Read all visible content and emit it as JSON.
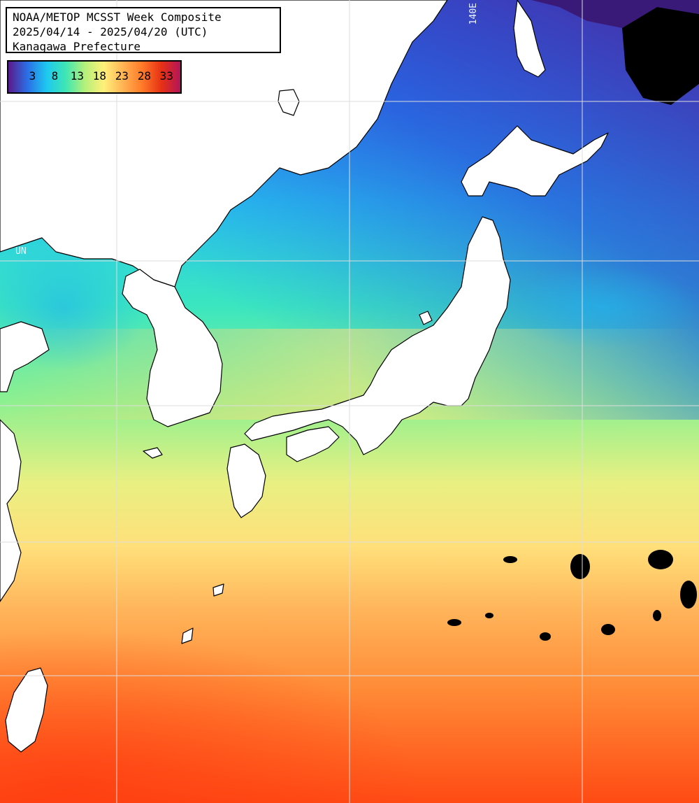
{
  "header": {
    "line1": "NOAA/METOP MCSST Week Composite",
    "line2": "2025/04/14 - 2025/04/20 (UTC)",
    "line3": "Kanagawa Prefecture"
  },
  "legend": {
    "ticks": [
      "3",
      "8",
      "13",
      "18",
      "23",
      "28",
      "33"
    ],
    "colors": [
      "#5a1a8a",
      "#2b6fe6",
      "#1ec8f0",
      "#3ee6b4",
      "#b4f07a",
      "#fff07a",
      "#ffb454",
      "#ff7a28",
      "#e63214",
      "#b4145a"
    ]
  },
  "grid_labels": {
    "lon": "140E",
    "lat": "UN"
  },
  "colors": {
    "land": "#ffffff",
    "coastline": "#000000",
    "grid": "#dddddd"
  }
}
